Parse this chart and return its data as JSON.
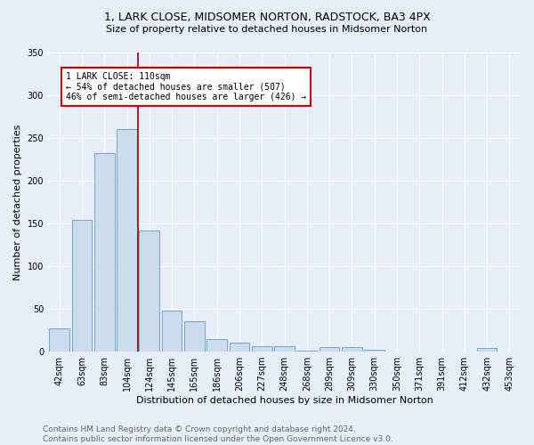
{
  "title": "1, LARK CLOSE, MIDSOMER NORTON, RADSTOCK, BA3 4PX",
  "subtitle": "Size of property relative to detached houses in Midsomer Norton",
  "xlabel": "Distribution of detached houses by size in Midsomer Norton",
  "ylabel": "Number of detached properties",
  "footer_line1": "Contains HM Land Registry data © Crown copyright and database right 2024.",
  "footer_line2": "Contains public sector information licensed under the Open Government Licence v3.0.",
  "categories": [
    "42sqm",
    "63sqm",
    "83sqm",
    "104sqm",
    "124sqm",
    "145sqm",
    "165sqm",
    "186sqm",
    "206sqm",
    "227sqm",
    "248sqm",
    "268sqm",
    "289sqm",
    "309sqm",
    "330sqm",
    "350sqm",
    "371sqm",
    "391sqm",
    "412sqm",
    "432sqm",
    "453sqm"
  ],
  "values": [
    27,
    154,
    232,
    260,
    142,
    48,
    35,
    15,
    10,
    6,
    6,
    1,
    5,
    5,
    2,
    0,
    0,
    0,
    0,
    4,
    0
  ],
  "bar_color": "#ccdcec",
  "bar_edge_color": "#6aaad4",
  "vline_x": 3.5,
  "vline_color": "#990000",
  "annotation_title": "1 LARK CLOSE: 110sqm",
  "annotation_line1": "← 54% of detached houses are smaller (507)",
  "annotation_line2": "46% of semi-detached houses are larger (426) →",
  "annotation_box_color": "#cc0000",
  "annotation_bg": "#ffffff",
  "ylim": [
    0,
    350
  ],
  "yticks": [
    0,
    50,
    100,
    150,
    200,
    250,
    300,
    350
  ],
  "bg_color": "#e8eef8",
  "plot_bg_color": "#e8eef8",
  "grid_color": "#ffffff",
  "title_fontsize": 9,
  "subtitle_fontsize": 8,
  "axis_label_fontsize": 8,
  "tick_fontsize": 7,
  "footer_fontsize": 6.5
}
